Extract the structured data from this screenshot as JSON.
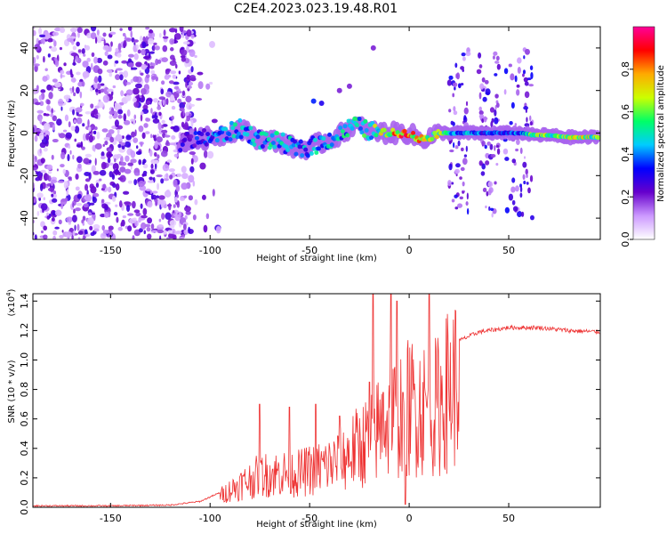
{
  "title": "C2E4.2023.023.19.48.R01",
  "chart_data": [
    {
      "type": "heatmap",
      "name": "spectrogram",
      "xlabel": "Height of straight line (km)",
      "ylabel": "Frequency (Hz)",
      "xlim": [
        -189,
        96
      ],
      "ylim": [
        -50,
        50
      ],
      "xticks": [
        -150,
        -100,
        -50,
        0,
        50
      ],
      "yticks": [
        -40,
        -20,
        0,
        20,
        40
      ],
      "colorbar": {
        "label": "Normalized spectral amplitude",
        "range": [
          0,
          1
        ],
        "ticks": [
          0.0,
          0.2,
          0.4,
          0.6,
          0.8
        ],
        "colors": [
          "#ffffff",
          "#cc99ff",
          "#6600cc",
          "#0000ff",
          "#00ccff",
          "#00ff66",
          "#ccff00",
          "#ffaa00",
          "#ff0000",
          "#ff0099"
        ]
      },
      "noise_region": {
        "x_range": [
          -189,
          -108
        ],
        "f_range": [
          -50,
          50
        ],
        "amplitude": 0.25
      },
      "bursts": [
        {
          "x_range": [
            20,
            30
          ],
          "f_range": [
            -40,
            40
          ],
          "amplitude": 0.3
        },
        {
          "x_range": [
            35,
            45
          ],
          "f_range": [
            -40,
            40
          ],
          "amplitude": 0.3
        },
        {
          "x_range": [
            48,
            62
          ],
          "f_range": [
            -40,
            40
          ],
          "amplitude": 0.3
        }
      ],
      "signal_track": [
        [
          -115,
          -4,
          0.3
        ],
        [
          -105,
          -3,
          0.35
        ],
        [
          -95,
          -1,
          0.45
        ],
        [
          -85,
          2,
          0.5
        ],
        [
          -75,
          -3,
          0.5
        ],
        [
          -65,
          -4,
          0.5
        ],
        [
          -55,
          -8,
          0.45
        ],
        [
          -45,
          -5,
          0.5
        ],
        [
          -35,
          -1,
          0.5
        ],
        [
          -28,
          4,
          0.55
        ],
        [
          -20,
          1,
          0.6
        ],
        [
          -12,
          0,
          0.75
        ],
        [
          -5,
          0,
          0.85
        ],
        [
          0,
          0,
          0.9
        ],
        [
          5,
          -3,
          0.85
        ],
        [
          10,
          -2,
          0.7
        ],
        [
          15,
          0,
          0.8
        ],
        [
          20,
          0,
          0.5
        ],
        [
          30,
          0,
          0.45
        ],
        [
          40,
          0,
          0.4
        ],
        [
          50,
          0,
          0.4
        ],
        [
          57,
          0,
          0.45
        ],
        [
          62,
          -1,
          0.65
        ],
        [
          70,
          -1,
          0.7
        ],
        [
          80,
          -2,
          0.7
        ],
        [
          88,
          -2,
          0.75
        ],
        [
          95,
          -2,
          0.6
        ]
      ],
      "side_features": [
        [
          -48,
          15,
          0.35
        ],
        [
          -44,
          14,
          0.3
        ],
        [
          -35,
          20,
          0.2
        ],
        [
          -30,
          22,
          0.2
        ],
        [
          -18,
          40,
          0.2
        ]
      ]
    },
    {
      "type": "line",
      "name": "snr",
      "xlabel": "Height of straight line (km)",
      "ylabel": "SNR (10 * v/v)",
      "y_multiplier": "(x10",
      "y_multiplier_exp": "4",
      "y_multiplier_close": ")",
      "xlim": [
        -189,
        96
      ],
      "ylim": [
        0,
        1.45
      ],
      "xticks": [
        -150,
        -100,
        -50,
        0,
        50
      ],
      "yticks": [
        0.0,
        0.2,
        0.4,
        0.6,
        0.8,
        1.0,
        1.2,
        1.4
      ],
      "color": "#ee3333",
      "envelope": [
        [
          -189,
          0.01
        ],
        [
          -150,
          0.01
        ],
        [
          -120,
          0.015
        ],
        [
          -105,
          0.04
        ],
        [
          -95,
          0.1
        ],
        [
          -85,
          0.2
        ],
        [
          -75,
          0.28
        ],
        [
          -65,
          0.3
        ],
        [
          -55,
          0.3
        ],
        [
          -45,
          0.35
        ],
        [
          -35,
          0.4
        ],
        [
          -28,
          0.5
        ],
        [
          -20,
          0.6
        ],
        [
          -15,
          0.7
        ],
        [
          -10,
          0.75
        ],
        [
          -5,
          0.85
        ],
        [
          0,
          0.88
        ],
        [
          5,
          0.9
        ],
        [
          10,
          0.85
        ],
        [
          15,
          0.9
        ],
        [
          20,
          1.05
        ],
        [
          25,
          1.13
        ],
        [
          35,
          1.19
        ],
        [
          50,
          1.22
        ],
        [
          65,
          1.22
        ],
        [
          80,
          1.2
        ],
        [
          96,
          1.19
        ]
      ],
      "spikes": [
        [
          -18,
          1.45
        ],
        [
          -9,
          1.45
        ],
        [
          -6,
          1.4
        ],
        [
          10,
          1.45
        ],
        [
          -75,
          0.7
        ],
        [
          -60,
          0.68
        ],
        [
          -47,
          0.7
        ],
        [
          -35,
          0.62
        ],
        [
          -20,
          0.85
        ],
        [
          -13,
          0.78
        ],
        [
          -3,
          0.78
        ],
        [
          -2,
          0.02
        ]
      ]
    }
  ]
}
